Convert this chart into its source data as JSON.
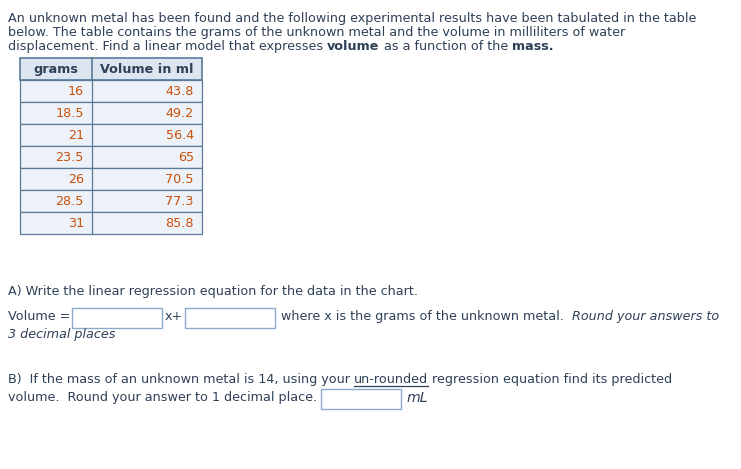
{
  "text_color": "#2e4057",
  "data_color": "#c8500a",
  "bold_color": "#1a1a2e",
  "table_header_bg": "#dde6f0",
  "table_row_bg": "#edf1f8",
  "table_border_color": "#5a7a9a",
  "input_box_border": "#8aaacc",
  "bg_color": "#ffffff",
  "grams": [
    16,
    18.5,
    21,
    23.5,
    26,
    28.5,
    31
  ],
  "volume": [
    "43.8",
    "49.2",
    "56.4",
    "65",
    "70.5",
    "77.3",
    "85.8"
  ],
  "table_headers": [
    "grams",
    "Volume in ml"
  ],
  "line1": "An unknown metal has been found and the following experimental results have been tabulated in the table",
  "line2": "below. The table contains the grams of the unknown metal and the volume in milliliters of water",
  "line3a": "displacement. Find a linear model that expresses ",
  "line3b": "volume",
  "line3c": " as a function of the ",
  "line3d": "mass.",
  "qa": "A) Write the linear regression equation for the data in the chart.",
  "vol_eq": "Volume =",
  "x_plus": "x+",
  "where_normal": "where x is the grams of the unknown metal.  ",
  "where_italic": "Round your answers to",
  "decimal_italic": "3 decimal places",
  "qb1a": "B)  If the mass of an unknown metal is 14, using your ",
  "qb1b": "un-rounded",
  "qb1c": " regression equation find its predicted",
  "qb2": "volume.  Round your answer to 1 decimal place.",
  "ml": "mL"
}
